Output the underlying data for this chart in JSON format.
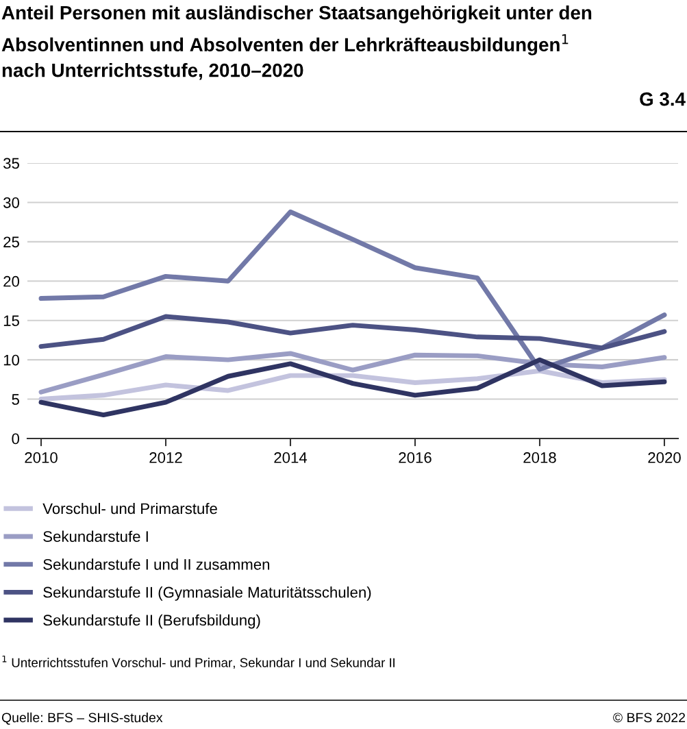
{
  "chart_data": {
    "type": "line",
    "title": "Anteil Personen mit ausländischer Staatsangehörigkeit unter den Absolventinnen und Absolventen der Lehrkräfteausbildungen$^{1}$ nach Unterrichtsstufe, 2010–2020",
    "annotations": [
      "G 3.4",
      "$^{1}$ Unterrichtsstufen Vorschul- und Primar, Sekundar I und Sekundar II",
      "Quelle: BFS – SHIS-studex",
      "© BFS 2022"
    ],
    "x": [
      2010,
      2011,
      2012,
      2013,
      2014,
      2015,
      2016,
      2017,
      2018,
      2019,
      2020
    ],
    "series": [
      {
        "name": "Vorschul- und Primarstufe",
        "color": "#c3c3de",
        "values": [
          5.0,
          5.5,
          6.8,
          6.1,
          8.0,
          8.0,
          7.1,
          7.6,
          8.6,
          7.1,
          7.5
        ]
      },
      {
        "name": "Sekundarstufe I",
        "color": "#9a9dc4",
        "values": [
          5.9,
          8.1,
          10.4,
          10.0,
          10.8,
          8.7,
          10.6,
          10.5,
          9.5,
          9.1,
          10.3
        ]
      },
      {
        "name": "Sekundarstufe I und II zusammen",
        "color": "#7279a8",
        "values": [
          17.8,
          18.0,
          20.6,
          20.0,
          28.8,
          25.3,
          21.7,
          20.4,
          8.8,
          11.5,
          15.7
        ]
      },
      {
        "name": "Sekundarstufe II (Gymnasiale Maturitätsschulen)",
        "color": "#4c5284",
        "values": [
          11.7,
          12.6,
          15.5,
          14.8,
          13.4,
          14.4,
          13.8,
          12.9,
          12.7,
          11.5,
          13.6
        ]
      },
      {
        "name": "Sekundarstufe II (Berufsbildung)",
        "color": "#2f3462",
        "values": [
          4.6,
          3.0,
          4.6,
          7.9,
          9.5,
          7.0,
          5.5,
          6.4,
          10.0,
          6.7,
          7.2
        ]
      }
    ],
    "xlim": [
      2009.78,
      2020.22
    ],
    "xticks": [
      2010,
      2012,
      2014,
      2016,
      2018,
      2020
    ],
    "ylim": [
      0,
      35
    ],
    "yticks": [
      0,
      5,
      10,
      15,
      20,
      25,
      30,
      35
    ],
    "grid": "y",
    "legend": "bottom",
    "marker": "none",
    "line_style": "solid"
  }
}
